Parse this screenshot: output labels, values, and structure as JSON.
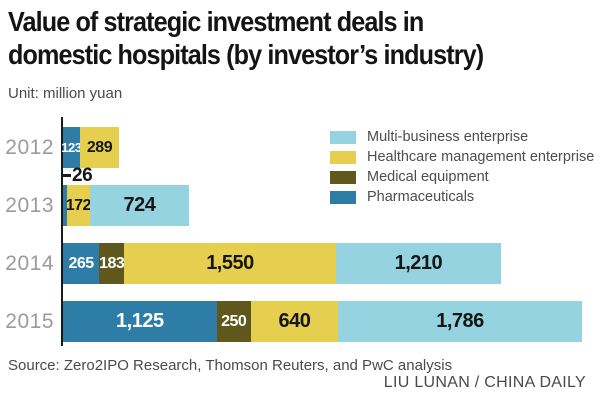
{
  "header": {
    "title_line1": "Value of strategic investment deals in",
    "title_line2": "domestic hospitals (by investor’s industry)",
    "unit_label": "Unit: million yuan"
  },
  "legend": {
    "items": [
      {
        "label": "Multi-business enterprise",
        "color": "#95d3e0"
      },
      {
        "label": "Healthcare management enterprise",
        "color": "#e6ce4f"
      },
      {
        "label": "Medical equipment",
        "color": "#60571c"
      },
      {
        "label": "Pharmaceuticals",
        "color": "#2e7da6"
      }
    ]
  },
  "chart_data": {
    "type": "bar",
    "orientation": "horizontal",
    "stacked": true,
    "title": "Value of strategic investment deals in domestic hospitals (by investor’s industry)",
    "unit": "million yuan",
    "categories": [
      "2012",
      "2013",
      "2014",
      "2015"
    ],
    "series": [
      {
        "name": "Pharmaceuticals",
        "color": "#2e7da6",
        "label_color": "#ffffff",
        "values": [
          123,
          26,
          265,
          1125
        ]
      },
      {
        "name": "Medical equipment",
        "color": "#60571c",
        "label_color": "#ffffff",
        "values": [
          0,
          0,
          183,
          250
        ]
      },
      {
        "name": "Healthcare management enterprise",
        "color": "#e6ce4f",
        "label_color": "#161616",
        "values": [
          289,
          172,
          1550,
          640
        ]
      },
      {
        "name": "Multi-business enterprise",
        "color": "#95d3e0",
        "label_color": "#161616",
        "values": [
          0,
          724,
          1210,
          1786
        ]
      }
    ],
    "row_totals": [
      412,
      922,
      3208,
      3801
    ],
    "xlim": [
      0,
      3801
    ],
    "grid": false,
    "legend_position": "top-right",
    "axis_color": "#1a1a1a",
    "category_label_color": "#9b9b9b"
  },
  "footer": {
    "source": "Source: Zero2IPO Research, Thomson Reuters, and PwC analysis",
    "credit": "LIU LUNAN / CHINA DAILY"
  }
}
